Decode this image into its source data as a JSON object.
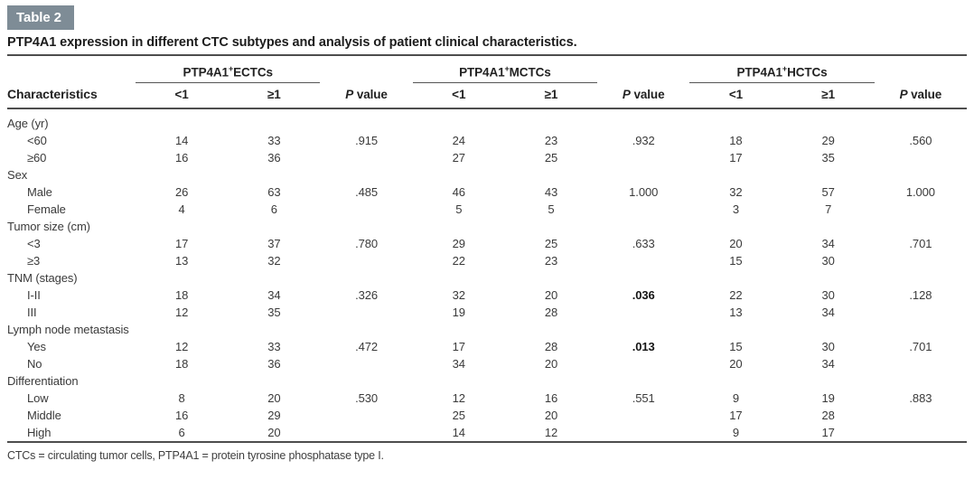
{
  "table": {
    "tag": "Table 2",
    "title": "PTP4A1 expression in different CTC subtypes and analysis of patient clinical characteristics.",
    "characteristics_header": "Characteristics",
    "groups": [
      {
        "prefix": "PTP4A1",
        "sup": "+",
        "suffix": "ECTCs"
      },
      {
        "prefix": "PTP4A1",
        "sup": "+",
        "suffix": "MCTCs"
      },
      {
        "prefix": "PTP4A1",
        "sup": "+",
        "suffix": "HCTCs"
      }
    ],
    "subheaders": {
      "lt": "<1",
      "ge": "≥1",
      "p_italic": "P",
      "p_rest": "value"
    },
    "rows": [
      {
        "label": "Age (yr)",
        "section": true,
        "values": [
          "",
          "",
          "",
          "",
          "",
          "",
          "",
          "",
          ""
        ]
      },
      {
        "label": "<60",
        "values": [
          "14",
          "33",
          ".915",
          "24",
          "23",
          ".932",
          "18",
          "29",
          ".560"
        ]
      },
      {
        "label": "≥60",
        "values": [
          "16",
          "36",
          "",
          "27",
          "25",
          "",
          "17",
          "35",
          ""
        ]
      },
      {
        "label": "Sex",
        "section": true,
        "values": [
          "",
          "",
          "",
          "",
          "",
          "",
          "",
          "",
          ""
        ]
      },
      {
        "label": "Male",
        "values": [
          "26",
          "63",
          ".485",
          "46",
          "43",
          "1.000",
          "32",
          "57",
          "1.000"
        ]
      },
      {
        "label": "Female",
        "values": [
          "4",
          "6",
          "",
          "5",
          "5",
          "",
          "3",
          "7",
          ""
        ]
      },
      {
        "label": "Tumor size (cm)",
        "section": true,
        "values": [
          "",
          "",
          "",
          "",
          "",
          "",
          "",
          "",
          ""
        ]
      },
      {
        "label": "<3",
        "values": [
          "17",
          "37",
          ".780",
          "29",
          "25",
          ".633",
          "20",
          "34",
          ".701"
        ]
      },
      {
        "label": "≥3",
        "values": [
          "13",
          "32",
          "",
          "22",
          "23",
          "",
          "15",
          "30",
          ""
        ]
      },
      {
        "label": "TNM (stages)",
        "section": true,
        "values": [
          "",
          "",
          "",
          "",
          "",
          "",
          "",
          "",
          ""
        ]
      },
      {
        "label": "I-II",
        "values": [
          "18",
          "34",
          ".326",
          "32",
          "20",
          ".036",
          "22",
          "30",
          ".128"
        ],
        "bold": [
          5
        ]
      },
      {
        "label": "III",
        "values": [
          "12",
          "35",
          "",
          "19",
          "28",
          "",
          "13",
          "34",
          ""
        ]
      },
      {
        "label": "Lymph node metastasis",
        "section": true,
        "values": [
          "",
          "",
          "",
          "",
          "",
          "",
          "",
          "",
          ""
        ]
      },
      {
        "label": "Yes",
        "values": [
          "12",
          "33",
          ".472",
          "17",
          "28",
          ".013",
          "15",
          "30",
          ".701"
        ],
        "bold": [
          5
        ]
      },
      {
        "label": "No",
        "values": [
          "18",
          "36",
          "",
          "34",
          "20",
          "",
          "20",
          "34",
          ""
        ]
      },
      {
        "label": "Differentiation",
        "section": true,
        "values": [
          "",
          "",
          "",
          "",
          "",
          "",
          "",
          "",
          ""
        ]
      },
      {
        "label": "Low",
        "values": [
          "8",
          "20",
          ".530",
          "12",
          "16",
          ".551",
          "9",
          "19",
          ".883"
        ]
      },
      {
        "label": "Middle",
        "values": [
          "16",
          "29",
          "",
          "25",
          "20",
          "",
          "17",
          "28",
          ""
        ]
      },
      {
        "label": "High",
        "values": [
          "6",
          "20",
          "",
          "14",
          "12",
          "",
          "9",
          "17",
          ""
        ]
      }
    ],
    "footnote": "CTCs = circulating tumor cells, PTP4A1 = protein tyrosine phosphatase type I.",
    "colors": {
      "tag_bg": "#7e8c96",
      "tag_text": "#ffffff",
      "rule": "#4d4d4d"
    }
  }
}
